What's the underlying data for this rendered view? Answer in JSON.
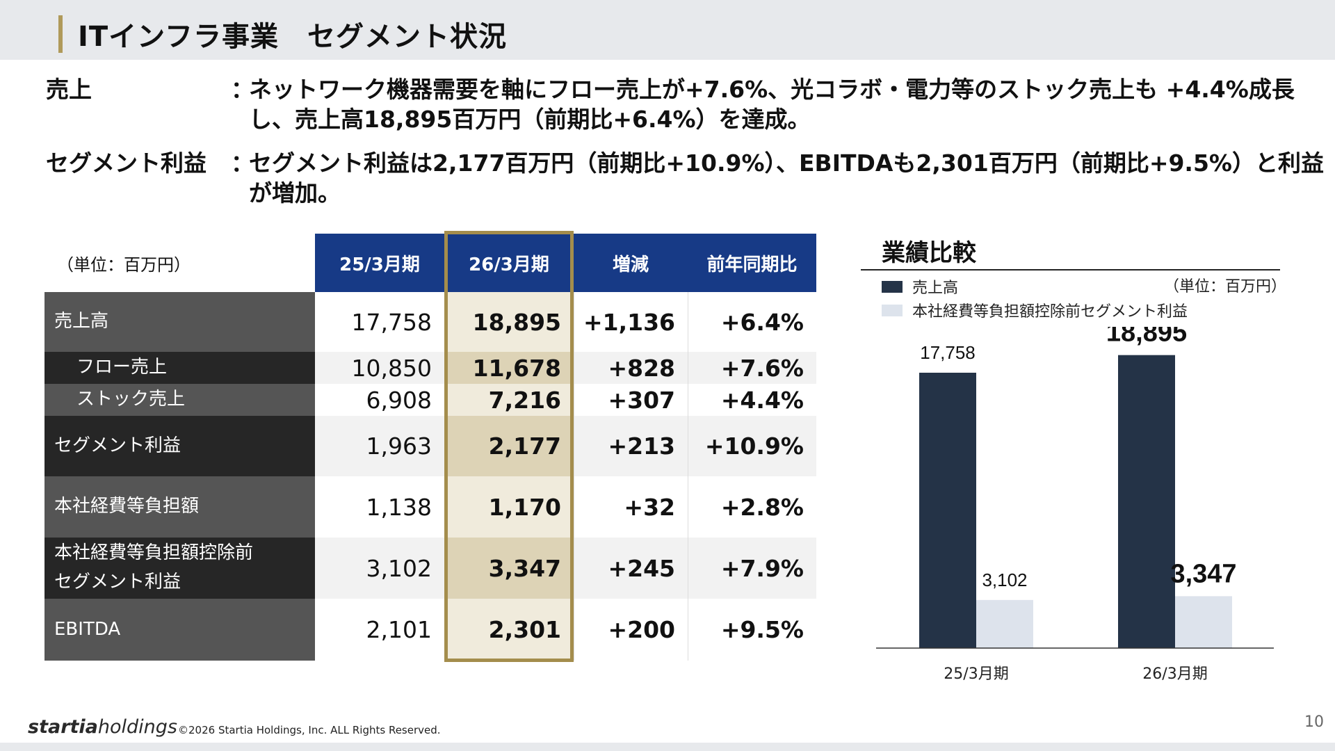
{
  "title": "ITインフラ事業　セグメント状況",
  "summary": [
    {
      "label": "売上",
      "colon": "：",
      "body": "ネットワーク機器需要を軸にフロー売上が+7.6%、光コラボ・電力等のストック売上も +4.4%成長し、売上高18,895百万円（前期比+6.4%）を達成。"
    },
    {
      "label": "セグメント利益",
      "colon": "：",
      "body": "セグメント利益は2,177百万円（前期比+10.9%）、EBITDAも2,301百万円（前期比+9.5%）と利益が増加。"
    }
  ],
  "table": {
    "unit": "（単位：百万円）",
    "headers": [
      "25/3月期",
      "26/3月期",
      "増減",
      "前年同期比"
    ],
    "rows": [
      {
        "label": "売上高",
        "cells": [
          "17,758",
          "18,895",
          "+1,136",
          "+6.4%"
        ]
      },
      {
        "label": "　フロー売上",
        "cells": [
          "10,850",
          "11,678",
          "+828",
          "+7.6%"
        ]
      },
      {
        "label": "　ストック売上",
        "cells": [
          "6,908",
          "7,216",
          "+307",
          "+4.4%"
        ]
      },
      {
        "label": "セグメント利益",
        "cells": [
          "1,963",
          "2,177",
          "+213",
          "+10.9%"
        ]
      },
      {
        "label": "本社経費等負担額",
        "cells": [
          "1,138",
          "1,170",
          "+32",
          "+2.8%"
        ]
      },
      {
        "label": "本社経費等負担額控除前\nセグメント利益",
        "cells": [
          "3,102",
          "3,347",
          "+245",
          "+7.9%"
        ]
      },
      {
        "label": "EBITDA",
        "cells": [
          "2,101",
          "2,301",
          "+200",
          "+9.5%"
        ]
      }
    ]
  },
  "chart_data": {
    "type": "bar",
    "title": "業績比較",
    "unit": "（単位：百万円）",
    "categories": [
      "25/3月期",
      "26/3月期"
    ],
    "series": [
      {
        "name": "売上高",
        "values": [
          17758,
          18895
        ],
        "color": "#243347"
      },
      {
        "name": "本社経費等負担額控除前セグメント利益",
        "values": [
          3102,
          3347
        ],
        "color": "#dde3ec"
      }
    ],
    "value_labels": [
      [
        "17,758",
        "18,895"
      ],
      [
        "3,102",
        "3,347"
      ]
    ],
    "legend": "top-left",
    "grid": false
  },
  "footer": {
    "logo_main": "startia",
    "logo_sub": "holdings",
    "copyright": "©2026 Startia Holdings, Inc. ALL Rights Reserved.",
    "page": "10"
  },
  "colors": {
    "header_blue": "#173a86",
    "accent_gold": "#a48d4c",
    "row_gray": "#555555",
    "row_dark": "#262626"
  }
}
